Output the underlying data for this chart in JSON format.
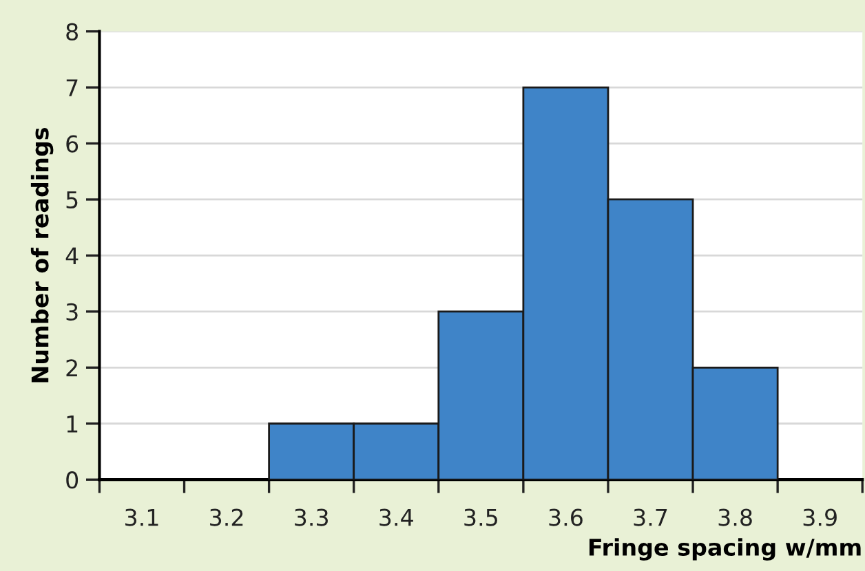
{
  "chart_data": {
    "type": "histogram",
    "xlabel": "Fringe spacing w/mm",
    "ylabel": "Number of readings",
    "bins": [
      3.25,
      3.35,
      3.45,
      3.55,
      3.65,
      3.75,
      3.85
    ],
    "values": [
      1,
      1,
      3,
      7,
      5,
      2
    ],
    "color": "#3f84c8",
    "xlim": [
      3.05,
      3.95
    ],
    "xticks": [
      {
        "value": 3.05,
        "label": null
      },
      3.1,
      {
        "value": 3.15,
        "label": null
      },
      3.2,
      {
        "value": 3.25,
        "label": null
      },
      3.3,
      {
        "value": 3.35,
        "label": null
      },
      3.4,
      {
        "value": 3.45,
        "label": null
      },
      3.5,
      {
        "value": 3.55,
        "label": null
      },
      3.6,
      {
        "value": 3.65,
        "label": null
      },
      3.7,
      {
        "value": 3.75,
        "label": null
      },
      3.8,
      {
        "value": 3.85,
        "label": null
      },
      3.9,
      {
        "value": 3.95,
        "label": null
      }
    ],
    "ylim": [
      0,
      8
    ],
    "yticks": [
      0,
      1,
      2,
      3,
      4,
      5,
      6,
      7,
      8
    ],
    "grid": "y",
    "legend": false
  }
}
